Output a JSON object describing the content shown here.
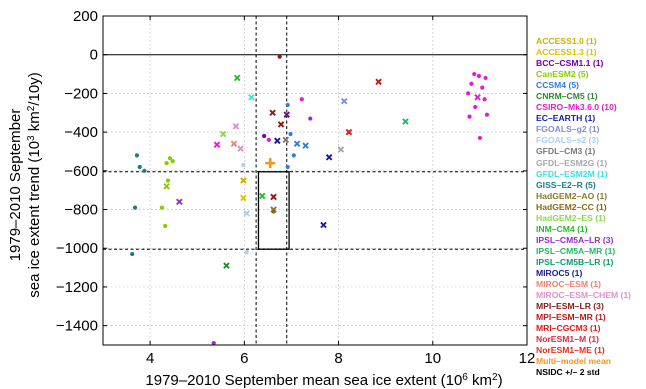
{
  "chart_data": {
    "type": "scatter",
    "title": "",
    "xlabel_parts": [
      "1979–2010 September mean sea ice extent (10",
      "6",
      " km",
      "2",
      ")"
    ],
    "ylabel_line1": "1979–2010 September",
    "ylabel_line2_parts": [
      "sea ice extent trend (10",
      "3",
      " km",
      "2",
      "/10y)"
    ],
    "xlim": [
      3,
      12
    ],
    "ylim": [
      -1500,
      200
    ],
    "x_ticks": [
      4,
      6,
      8,
      10,
      12
    ],
    "y_ticks": [
      200,
      0,
      -200,
      -400,
      -600,
      -800,
      -1000,
      -1200,
      -1400
    ],
    "grid": true,
    "hlines": [
      0
    ],
    "dashed_hlines": [
      -605,
      -1005
    ],
    "dashed_vlines": [
      6.25,
      6.9
    ],
    "obs_box": {
      "x": [
        6.3,
        6.95
      ],
      "y": [
        -1005,
        -605
      ]
    },
    "legend_entries": [
      {
        "label": "ACCESS1.0 (1)",
        "color": "#C8B400"
      },
      {
        "label": "ACCESS1.3 (1)",
        "color": "#D9C400"
      },
      {
        "label": "BCC–CSM1.1 (1)",
        "color": "#7A00A8"
      },
      {
        "label": "CanESM2 (5)",
        "color": "#88CC00"
      },
      {
        "label": "CCSM4 (5)",
        "color": "#2E7FD8"
      },
      {
        "label": "CNRM–CM5 (1)",
        "color": "#2A8A2A"
      },
      {
        "label": "CSIRO–Mk3.6.0 (10)",
        "color": "#E21BD6"
      },
      {
        "label": "EC–EARTH (1)",
        "color": "#1A1AB0"
      },
      {
        "label": "FGOALS–g2 (1)",
        "color": "#7D8FD8"
      },
      {
        "label": "FGOALS–s2 (3)",
        "color": "#A8D0F5"
      },
      {
        "label": "GFDL–CM3 (1)",
        "color": "#7A7A7A"
      },
      {
        "label": "GFDL–ESM2G (1)",
        "color": "#A8A8A8"
      },
      {
        "label": "GFDL–ESM2M (1)",
        "color": "#3CE0E0"
      },
      {
        "label": "GISS–E2–R (5)",
        "color": "#1E7A8A"
      },
      {
        "label": "HadGEM2–AO (1)",
        "color": "#8A7A2A"
      },
      {
        "label": "HadGEM2–CC (1)",
        "color": "#8A6A10"
      },
      {
        "label": "HadGEM2–ES (1)",
        "color": "#8DD65A"
      },
      {
        "label": "INM–CM4 (1)",
        "color": "#22C022"
      },
      {
        "label": "IPSL–CM5A–LR (3)",
        "color": "#9A2AD0"
      },
      {
        "label": "IPSL–CM5A–MR (1)",
        "color": "#22B86A"
      },
      {
        "label": "IPSL–CM5B–LR (1)",
        "color": "#0E9A70"
      },
      {
        "label": "MIROC5 (1)",
        "color": "#1A1A90"
      },
      {
        "label": "MIROC–ESM (1)",
        "color": "#F08070"
      },
      {
        "label": "MIROC–ESM–CHEM (1)",
        "color": "#E090D0"
      },
      {
        "label": "MPI–ESM–LR (3)",
        "color": "#8A1A1A"
      },
      {
        "label": "MPI–ESM–MR (1)",
        "color": "#C01818"
      },
      {
        "label": "MRI–CGCM3 (1)",
        "color": "#E01818"
      },
      {
        "label": "NorESM1–M (1)",
        "color": "#E02840"
      },
      {
        "label": "NorESM1–ME (1)",
        "color": "#E03020"
      },
      {
        "label": "Multi–model mean",
        "color": "#F7941D"
      },
      {
        "label": "NSIDC +/– 2 std",
        "color": "#000000"
      }
    ],
    "points": [
      {
        "x": 3.62,
        "y": -1030,
        "c": "#1E7A8A",
        "m": "dot"
      },
      {
        "x": 3.68,
        "y": -790,
        "c": "#1E7A8A",
        "m": "dot"
      },
      {
        "x": 3.72,
        "y": -520,
        "c": "#1E7A8A",
        "m": "dot"
      },
      {
        "x": 3.78,
        "y": -580,
        "c": "#1E7A8A",
        "m": "dot"
      },
      {
        "x": 3.88,
        "y": -600,
        "c": "#1E7A8A",
        "m": "dot"
      },
      {
        "x": 4.25,
        "y": -790,
        "c": "#88CC00",
        "m": "dot"
      },
      {
        "x": 4.32,
        "y": -885,
        "c": "#88CC00",
        "m": "dot"
      },
      {
        "x": 4.35,
        "y": -560,
        "c": "#88CC00",
        "m": "dot"
      },
      {
        "x": 4.38,
        "y": -650,
        "c": "#88CC00",
        "m": "dot"
      },
      {
        "x": 4.42,
        "y": -535,
        "c": "#88CC00",
        "m": "dot"
      },
      {
        "x": 4.48,
        "y": -550,
        "c": "#88CC00",
        "m": "dot"
      },
      {
        "x": 4.35,
        "y": -680,
        "c": "#88CC00",
        "m": "x"
      },
      {
        "x": 4.62,
        "y": -760,
        "c": "#9A2AD0",
        "m": "x"
      },
      {
        "x": 5.35,
        "y": -1490,
        "c": "#9A2AD0",
        "m": "dot"
      },
      {
        "x": 5.42,
        "y": -465,
        "c": "#E21BD6",
        "m": "x"
      },
      {
        "x": 5.55,
        "y": -410,
        "c": "#8DD65A",
        "m": "x"
      },
      {
        "x": 5.62,
        "y": -1090,
        "c": "#2A8A2A",
        "m": "x"
      },
      {
        "x": 5.78,
        "y": -460,
        "c": "#F08070",
        "m": "x"
      },
      {
        "x": 5.82,
        "y": -370,
        "c": "#E090D0",
        "m": "x"
      },
      {
        "x": 5.85,
        "y": -120,
        "c": "#22C022",
        "m": "x"
      },
      {
        "x": 5.92,
        "y": -485,
        "c": "#E090D0",
        "m": "x"
      },
      {
        "x": 5.98,
        "y": -570,
        "c": "#A8D0F5",
        "m": "dot"
      },
      {
        "x": 5.98,
        "y": -650,
        "c": "#C8B400",
        "m": "x"
      },
      {
        "x": 5.98,
        "y": -740,
        "c": "#D9C400",
        "m": "x"
      },
      {
        "x": 6.05,
        "y": -820,
        "c": "#A8D0F5",
        "m": "x"
      },
      {
        "x": 6.05,
        "y": -1020,
        "c": "#A8D0F5",
        "m": "dot"
      },
      {
        "x": 6.15,
        "y": -220,
        "c": "#3CE0E0",
        "m": "x"
      },
      {
        "x": 6.38,
        "y": -730,
        "c": "#22C022",
        "m": "x"
      },
      {
        "x": 6.42,
        "y": -420,
        "c": "#7A00A8",
        "m": "dot"
      },
      {
        "x": 6.52,
        "y": -440,
        "c": "#E21BD6",
        "m": "dot"
      },
      {
        "x": 6.55,
        "y": -560,
        "c": "#F7941D",
        "m": "plus"
      },
      {
        "x": 6.6,
        "y": -300,
        "c": "#8A1A1A",
        "m": "x"
      },
      {
        "x": 6.62,
        "y": -800,
        "c": "#8A7A2A",
        "m": "x"
      },
      {
        "x": 6.62,
        "y": -810,
        "c": "#8A6A10",
        "m": "dot"
      },
      {
        "x": 6.62,
        "y": -735,
        "c": "#8A1A1A",
        "m": "x"
      },
      {
        "x": 6.7,
        "y": -445,
        "c": "#1A1A90",
        "m": "x"
      },
      {
        "x": 6.75,
        "y": -10,
        "c": "#8A1A1A",
        "m": "dot"
      },
      {
        "x": 6.78,
        "y": -360,
        "c": "#8A1A1A",
        "m": "x"
      },
      {
        "x": 6.88,
        "y": -440,
        "c": "#7A7A7A",
        "m": "x"
      },
      {
        "x": 6.9,
        "y": -310,
        "c": "#7A00A8",
        "m": "x"
      },
      {
        "x": 6.92,
        "y": -580,
        "c": "#2E7FD8",
        "m": "dot"
      },
      {
        "x": 6.92,
        "y": -260,
        "c": "#2E7FD8",
        "m": "dot"
      },
      {
        "x": 6.98,
        "y": -410,
        "c": "#2E7FD8",
        "m": "dot"
      },
      {
        "x": 7.05,
        "y": -520,
        "c": "#2E7FD8",
        "m": "dot"
      },
      {
        "x": 7.12,
        "y": -460,
        "c": "#2E7FD8",
        "m": "x"
      },
      {
        "x": 7.22,
        "y": -230,
        "c": "#E21BD6",
        "m": "dot"
      },
      {
        "x": 7.3,
        "y": -470,
        "c": "#2E7FD8",
        "m": "x"
      },
      {
        "x": 7.4,
        "y": -330,
        "c": "#9A2AD0",
        "m": "dot"
      },
      {
        "x": 7.68,
        "y": -880,
        "c": "#1A1AB0",
        "m": "x"
      },
      {
        "x": 7.8,
        "y": -530,
        "c": "#1A1A90",
        "m": "x"
      },
      {
        "x": 8.05,
        "y": -490,
        "c": "#A8A8A8",
        "m": "x"
      },
      {
        "x": 8.12,
        "y": -240,
        "c": "#7D8FD8",
        "m": "x"
      },
      {
        "x": 8.22,
        "y": -400,
        "c": "#E01818",
        "m": "x"
      },
      {
        "x": 8.85,
        "y": -140,
        "c": "#C01818",
        "m": "x"
      },
      {
        "x": 9.42,
        "y": -345,
        "c": "#22B86A",
        "m": "x"
      },
      {
        "x": 10.75,
        "y": -200,
        "c": "#E21BD6",
        "m": "dot"
      },
      {
        "x": 10.78,
        "y": -320,
        "c": "#E21BD6",
        "m": "dot"
      },
      {
        "x": 10.82,
        "y": -150,
        "c": "#E21BD6",
        "m": "dot"
      },
      {
        "x": 10.88,
        "y": -100,
        "c": "#E21BD6",
        "m": "dot"
      },
      {
        "x": 10.9,
        "y": -270,
        "c": "#E21BD6",
        "m": "dot"
      },
      {
        "x": 10.95,
        "y": -220,
        "c": "#E21BD6",
        "m": "x"
      },
      {
        "x": 10.98,
        "y": -110,
        "c": "#E21BD6",
        "m": "dot"
      },
      {
        "x": 11.0,
        "y": -430,
        "c": "#E21BD6",
        "m": "dot"
      },
      {
        "x": 11.05,
        "y": -170,
        "c": "#E21BD6",
        "m": "dot"
      },
      {
        "x": 11.1,
        "y": -230,
        "c": "#E21BD6",
        "m": "dot"
      },
      {
        "x": 11.12,
        "y": -120,
        "c": "#E21BD6",
        "m": "dot"
      },
      {
        "x": 11.15,
        "y": -310,
        "c": "#E21BD6",
        "m": "dot"
      }
    ]
  }
}
